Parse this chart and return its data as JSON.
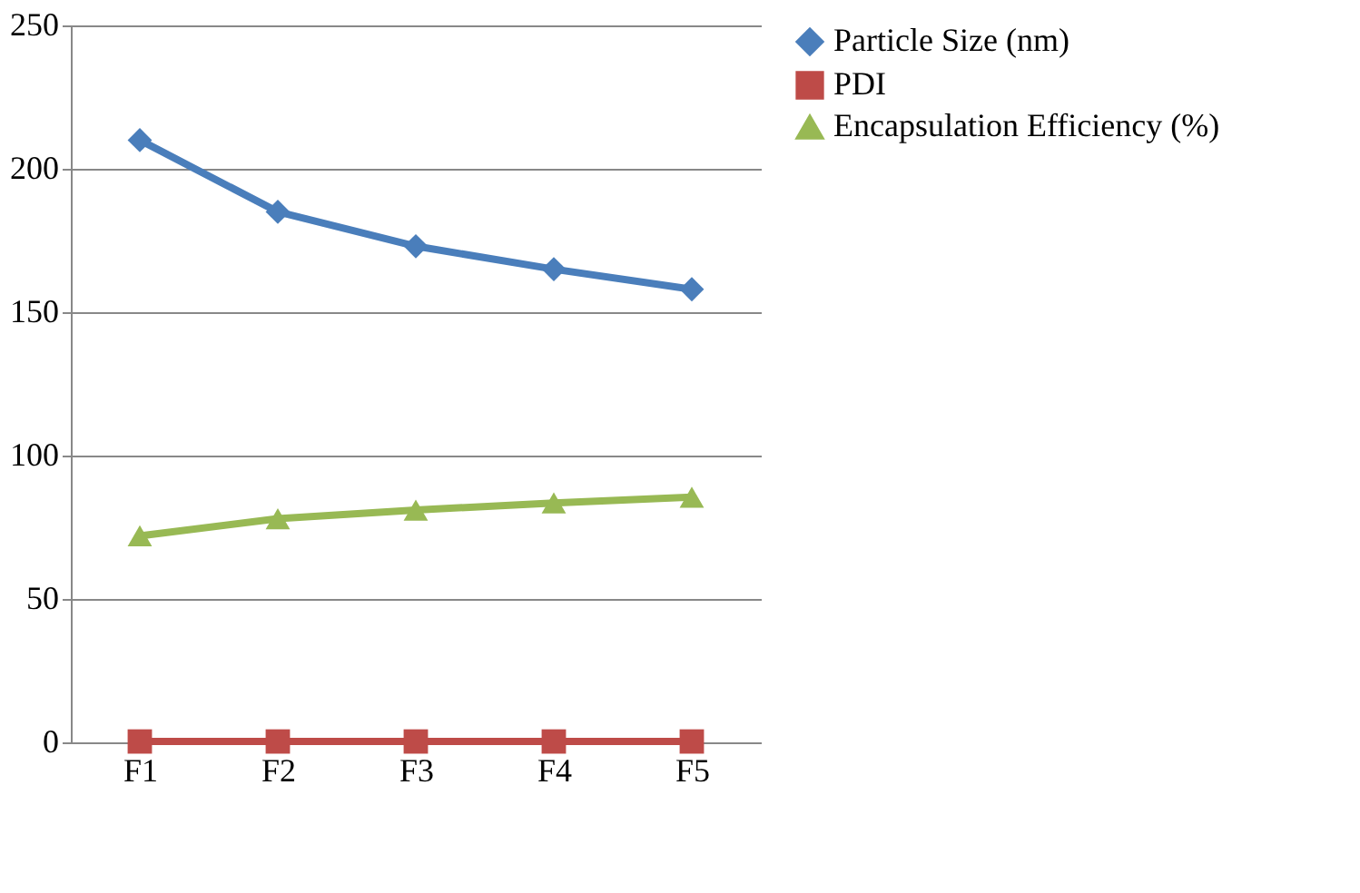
{
  "chart_data": {
    "type": "line",
    "categories": [
      "F1",
      "F2",
      "F3",
      "F4",
      "F5"
    ],
    "series": [
      {
        "name": "Particle Size (nm)",
        "color": "#4a7ebb",
        "marker": "diamond",
        "values": [
          210,
          185,
          173,
          165,
          158
        ]
      },
      {
        "name": "PDI",
        "color": "#be4b48",
        "marker": "square",
        "values": [
          0.3,
          0.3,
          0.3,
          0.3,
          0.3
        ]
      },
      {
        "name": "Encapsulation Efficiency (%)",
        "color": "#98b954",
        "marker": "triangle",
        "values": [
          72,
          78,
          81,
          83.5,
          85.5
        ]
      }
    ],
    "ylim": [
      0,
      250
    ],
    "yticks": [
      0,
      50,
      100,
      150,
      200,
      250
    ],
    "grid": "y",
    "legend": "right"
  }
}
